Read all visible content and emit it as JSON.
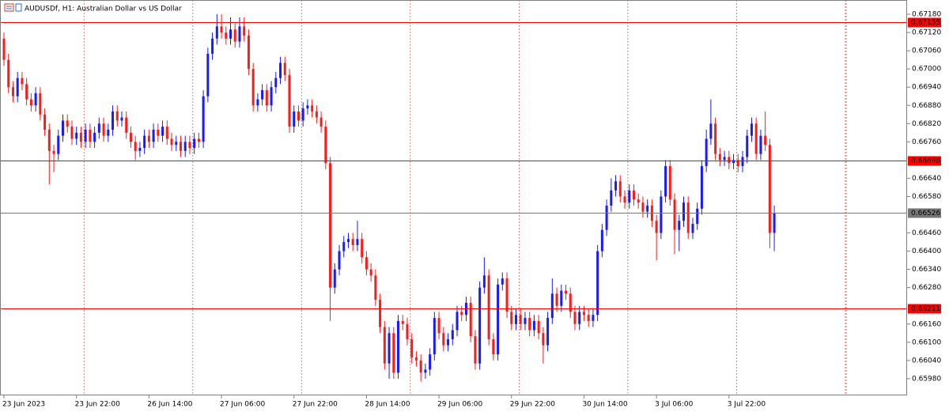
{
  "chart_data": {
    "type": "candlestick",
    "title": "AUDUSDf, H1: Australian Dollar vs US Dollar",
    "up_color": "#1a1aff",
    "down_color": "#ff1a1a",
    "ylim": [
      0.65925,
      0.67227
    ],
    "yticks": [
      {
        "value": 0.6718,
        "label": "0.67180"
      },
      {
        "value": 0.6712,
        "label": "0.67120"
      },
      {
        "value": 0.6706,
        "label": "0.67060"
      },
      {
        "value": 0.67,
        "label": "0.67000"
      },
      {
        "value": 0.6694,
        "label": "0.66940"
      },
      {
        "value": 0.6688,
        "label": "0.66880"
      },
      {
        "value": 0.6682,
        "label": "0.66820"
      },
      {
        "value": 0.6676,
        "label": "0.66760"
      },
      {
        "value": 0.6664,
        "label": "0.66640"
      },
      {
        "value": 0.6658,
        "label": "0.66580"
      },
      {
        "value": 0.6646,
        "label": "0.66460"
      },
      {
        "value": 0.664,
        "label": "0.66400"
      },
      {
        "value": 0.6634,
        "label": "0.66340"
      },
      {
        "value": 0.6628,
        "label": "0.66280"
      },
      {
        "value": 0.6616,
        "label": "0.66160"
      },
      {
        "value": 0.661,
        "label": "0.66100"
      },
      {
        "value": 0.6604,
        "label": "0.66040"
      },
      {
        "value": 0.6598,
        "label": "0.65980"
      }
    ],
    "levels": [
      {
        "value": 0.67155,
        "color": "#ff0000"
      },
      {
        "value": 0.66698,
        "color": "#ff0000"
      },
      {
        "value": 0.66526,
        "color": "#777777"
      },
      {
        "value": 0.66211,
        "color": "#ff0000"
      }
    ],
    "categories": [
      "23 Jun 2023",
      null,
      null,
      null,
      null,
      null,
      null,
      null,
      null,
      null,
      null,
      null,
      null,
      null,
      null,
      null,
      "23 Jun 22:00",
      null,
      null,
      null,
      null,
      null,
      null,
      null,
      null,
      null,
      null,
      null,
      null,
      null,
      null,
      null,
      "26 Jun 14:00",
      null,
      null,
      null,
      null,
      null,
      null,
      null,
      null,
      null,
      null,
      null,
      null,
      null,
      null,
      null,
      "27 Jun 06:00",
      null,
      null,
      null,
      null,
      null,
      null,
      null,
      null,
      null,
      null,
      null,
      null,
      null,
      null,
      null,
      "27 Jun 22:00",
      null,
      null,
      null,
      null,
      null,
      null,
      null,
      null,
      null,
      null,
      null,
      null,
      null,
      null,
      null,
      "28 Jun 14:00",
      null,
      null,
      null,
      null,
      null,
      null,
      null,
      null,
      null,
      null,
      null,
      null,
      null,
      null,
      null,
      "29 Jun 06:00",
      null,
      null,
      null,
      null,
      null,
      null,
      null,
      null,
      null,
      null,
      null,
      null,
      null,
      null,
      null,
      "29 Jun 22:00",
      null,
      null,
      null,
      null,
      null,
      null,
      null,
      null,
      null,
      null,
      null,
      null,
      null,
      null,
      null,
      "30 Jun 14:00",
      null,
      null,
      null,
      null,
      null,
      null,
      null,
      null,
      null,
      null,
      null,
      null,
      null,
      null,
      null,
      "3 Jul 06:00",
      null,
      null,
      null,
      null,
      null,
      null,
      null,
      null,
      null,
      null,
      null,
      null,
      null,
      null,
      null,
      "3 Jul 22:00",
      null,
      null,
      null,
      null,
      null,
      null,
      null,
      null,
      null,
      null
    ],
    "open": [
      0.671,
      0.6703,
      0.6694,
      0.6691,
      0.6697,
      0.6695,
      0.669,
      0.6688,
      0.6692,
      0.6685,
      0.668,
      0.6673,
      0.6672,
      0.6678,
      0.6683,
      0.6681,
      0.6677,
      0.6679,
      0.6676,
      0.668,
      0.6676,
      0.6679,
      0.6682,
      0.6678,
      0.668,
      0.6686,
      0.6683,
      0.6684,
      0.6679,
      0.6676,
      0.6673,
      0.6674,
      0.6678,
      0.6676,
      0.668,
      0.6678,
      0.6681,
      0.6677,
      0.6675,
      0.6676,
      0.6673,
      0.6676,
      0.6674,
      0.6677,
      0.6676,
      0.6691,
      0.6705,
      0.671,
      0.6714,
      0.6712,
      0.671,
      0.6713,
      0.6709,
      0.6714,
      0.6711,
      0.67,
      0.6688,
      0.669,
      0.6693,
      0.6688,
      0.6694,
      0.6697,
      0.6702,
      0.6698,
      0.6681,
      0.6686,
      0.6683,
      0.6687,
      0.6688,
      0.6686,
      0.6684,
      0.6681,
      0.6669,
      0.6628,
      0.6634,
      0.664,
      0.6643,
      0.6644,
      0.6642,
      0.6644,
      0.6638,
      0.6634,
      0.6632,
      0.6624,
      0.6615,
      0.6603,
      0.6613,
      0.66,
      0.6617,
      0.6616,
      0.6611,
      0.6605,
      0.6604,
      0.66,
      0.6601,
      0.6606,
      0.6618,
      0.6613,
      0.6609,
      0.6611,
      0.6614,
      0.662,
      0.6619,
      0.6623,
      0.6612,
      0.6603,
      0.6628,
      0.6632,
      0.6611,
      0.6606,
      0.6629,
      0.6631,
      0.662,
      0.6616,
      0.6619,
      0.6616,
      0.6618,
      0.6614,
      0.6617,
      0.6613,
      0.6609,
      0.6618,
      0.6626,
      0.6622,
      0.6627,
      0.6626,
      0.662,
      0.6616,
      0.662,
      0.6619,
      0.6617,
      0.6619,
      0.664,
      0.6647,
      0.6655,
      0.666,
      0.6663,
      0.6658,
      0.6656,
      0.666,
      0.6657,
      0.6656,
      0.6653,
      0.6655,
      0.665,
      0.6646,
      0.6658,
      0.6668,
      0.6657,
      0.6647,
      0.665,
      0.6656,
      0.6646,
      0.6649,
      0.6654,
      0.6668,
      0.6677,
      0.6682,
      0.6672,
      0.667,
      0.6671,
      0.6669,
      0.667,
      0.6668,
      0.6671,
      0.6678,
      0.6682,
      0.6672,
      0.6678,
      0.6675,
      0.6646
    ],
    "high": [
      0.6712,
      0.6705,
      0.6696,
      0.6699,
      0.6699,
      0.6697,
      0.6692,
      0.6694,
      0.6694,
      0.6687,
      0.6682,
      0.6675,
      0.668,
      0.6685,
      0.6685,
      0.6683,
      0.6681,
      0.6681,
      0.6682,
      0.6682,
      0.6681,
      0.6684,
      0.6684,
      0.6682,
      0.6688,
      0.6688,
      0.6686,
      0.6686,
      0.6681,
      0.6678,
      0.6676,
      0.668,
      0.668,
      0.6682,
      0.6682,
      0.6683,
      0.6683,
      0.6679,
      0.6678,
      0.6678,
      0.6678,
      0.6678,
      0.6679,
      0.6679,
      0.6693,
      0.6707,
      0.6712,
      0.6718,
      0.6718,
      0.6714,
      0.6717,
      0.6715,
      0.6717,
      0.6717,
      0.6713,
      0.6702,
      0.6692,
      0.6695,
      0.6695,
      0.6696,
      0.6699,
      0.6704,
      0.6704,
      0.67,
      0.6688,
      0.6688,
      0.6689,
      0.669,
      0.669,
      0.6688,
      0.6686,
      0.6683,
      0.6671,
      0.6636,
      0.6642,
      0.6645,
      0.6646,
      0.6646,
      0.665,
      0.6646,
      0.664,
      0.6636,
      0.6634,
      0.6626,
      0.6617,
      0.6615,
      0.6615,
      0.6619,
      0.6619,
      0.6618,
      0.6613,
      0.6607,
      0.6606,
      0.6603,
      0.6608,
      0.662,
      0.662,
      0.6615,
      0.6613,
      0.6616,
      0.6622,
      0.6622,
      0.6625,
      0.6625,
      0.6614,
      0.663,
      0.6638,
      0.6634,
      0.6613,
      0.6631,
      0.6633,
      0.6633,
      0.6622,
      0.6621,
      0.6621,
      0.662,
      0.662,
      0.6619,
      0.6619,
      0.6615,
      0.662,
      0.6631,
      0.6628,
      0.6629,
      0.6629,
      0.6628,
      0.6622,
      0.6622,
      0.6622,
      0.6621,
      0.6621,
      0.6642,
      0.6649,
      0.6657,
      0.6664,
      0.6665,
      0.6665,
      0.666,
      0.6662,
      0.6662,
      0.6659,
      0.6658,
      0.6657,
      0.6657,
      0.6652,
      0.666,
      0.667,
      0.667,
      0.6659,
      0.6652,
      0.6658,
      0.6658,
      0.6651,
      0.6656,
      0.667,
      0.668,
      0.669,
      0.6684,
      0.6674,
      0.6673,
      0.6673,
      0.6672,
      0.6672,
      0.6673,
      0.668,
      0.6684,
      0.6684,
      0.668,
      0.6686,
      0.6677,
      0.6655
    ],
    "low": [
      0.6701,
      0.6692,
      0.6689,
      0.6689,
      0.6693,
      0.6688,
      0.6686,
      0.6686,
      0.6683,
      0.6678,
      0.6662,
      0.6666,
      0.667,
      0.6676,
      0.6679,
      0.6675,
      0.6675,
      0.6674,
      0.6674,
      0.6674,
      0.6674,
      0.6677,
      0.6676,
      0.6676,
      0.6678,
      0.6681,
      0.6681,
      0.6677,
      0.6674,
      0.667,
      0.6671,
      0.6672,
      0.6674,
      0.6674,
      0.6676,
      0.6676,
      0.6675,
      0.6673,
      0.6673,
      0.6671,
      0.6671,
      0.6672,
      0.6672,
      0.6674,
      0.6674,
      0.6689,
      0.6703,
      0.6708,
      0.671,
      0.6708,
      0.6708,
      0.6707,
      0.6707,
      0.6709,
      0.6698,
      0.6686,
      0.6686,
      0.6688,
      0.6686,
      0.6686,
      0.6692,
      0.6695,
      0.6696,
      0.6679,
      0.6679,
      0.6681,
      0.6681,
      0.6685,
      0.6684,
      0.6682,
      0.6679,
      0.6667,
      0.6617,
      0.6626,
      0.6632,
      0.6638,
      0.6641,
      0.664,
      0.664,
      0.6636,
      0.6632,
      0.663,
      0.6622,
      0.6613,
      0.6601,
      0.6598,
      0.6598,
      0.6598,
      0.6614,
      0.6609,
      0.6603,
      0.6602,
      0.6597,
      0.6598,
      0.6599,
      0.6604,
      0.6611,
      0.6607,
      0.6607,
      0.6609,
      0.6612,
      0.6617,
      0.6617,
      0.661,
      0.6601,
      0.6601,
      0.6626,
      0.6609,
      0.6604,
      0.6604,
      0.6627,
      0.6618,
      0.6614,
      0.6614,
      0.6614,
      0.6614,
      0.6612,
      0.6612,
      0.6611,
      0.6603,
      0.6607,
      0.6616,
      0.662,
      0.662,
      0.6624,
      0.6618,
      0.6614,
      0.6614,
      0.6617,
      0.6615,
      0.6615,
      0.6617,
      0.6638,
      0.6645,
      0.6653,
      0.6658,
      0.6656,
      0.6654,
      0.6654,
      0.6655,
      0.6654,
      0.6651,
      0.6651,
      0.6648,
      0.6637,
      0.6644,
      0.6656,
      0.6655,
      0.6639,
      0.664,
      0.6648,
      0.6644,
      0.6644,
      0.6647,
      0.6652,
      0.6666,
      0.6675,
      0.667,
      0.6668,
      0.6668,
      0.6667,
      0.6667,
      0.6666,
      0.6666,
      0.6669,
      0.6676,
      0.667,
      0.667,
      0.6673,
      0.6641,
      0.664
    ],
    "close": [
      0.6703,
      0.6694,
      0.6691,
      0.6697,
      0.6695,
      0.669,
      0.6688,
      0.6692,
      0.6685,
      0.668,
      0.6673,
      0.6672,
      0.6678,
      0.6683,
      0.6681,
      0.6677,
      0.6679,
      0.6676,
      0.668,
      0.6676,
      0.6679,
      0.6682,
      0.6678,
      0.668,
      0.6686,
      0.6683,
      0.6684,
      0.6679,
      0.6676,
      0.6673,
      0.6674,
      0.6678,
      0.6676,
      0.668,
      0.6678,
      0.6681,
      0.6677,
      0.6675,
      0.6676,
      0.6673,
      0.6676,
      0.6674,
      0.6677,
      0.6676,
      0.6691,
      0.6705,
      0.671,
      0.6714,
      0.6712,
      0.671,
      0.6713,
      0.6709,
      0.6714,
      0.6711,
      0.67,
      0.6688,
      0.669,
      0.6693,
      0.6688,
      0.6694,
      0.6697,
      0.6702,
      0.6698,
      0.6681,
      0.6686,
      0.6683,
      0.6687,
      0.6688,
      0.6686,
      0.6684,
      0.6681,
      0.6669,
      0.6628,
      0.6634,
      0.664,
      0.6643,
      0.6644,
      0.6642,
      0.6644,
      0.6638,
      0.6634,
      0.6632,
      0.6624,
      0.6615,
      0.6603,
      0.6613,
      0.66,
      0.6617,
      0.6616,
      0.6611,
      0.6605,
      0.6604,
      0.66,
      0.6601,
      0.6606,
      0.6618,
      0.6613,
      0.6609,
      0.6611,
      0.6614,
      0.662,
      0.6619,
      0.6623,
      0.6612,
      0.6603,
      0.6628,
      0.6632,
      0.6611,
      0.6606,
      0.6629,
      0.6631,
      0.662,
      0.6616,
      0.6619,
      0.6616,
      0.6618,
      0.6614,
      0.6617,
      0.6613,
      0.6609,
      0.6618,
      0.6626,
      0.6622,
      0.6627,
      0.6626,
      0.662,
      0.6616,
      0.662,
      0.6619,
      0.6617,
      0.6619,
      0.664,
      0.6647,
      0.6655,
      0.666,
      0.6663,
      0.6658,
      0.6656,
      0.666,
      0.6657,
      0.6656,
      0.6653,
      0.6655,
      0.665,
      0.6646,
      0.6658,
      0.6668,
      0.6657,
      0.6647,
      0.665,
      0.6656,
      0.6646,
      0.6649,
      0.6654,
      0.6668,
      0.6677,
      0.6682,
      0.6672,
      0.667,
      0.6671,
      0.6669,
      0.667,
      0.6668,
      0.6671,
      0.6678,
      0.6682,
      0.6672,
      0.6678,
      0.6675,
      0.6646,
      0.66526
    ]
  }
}
